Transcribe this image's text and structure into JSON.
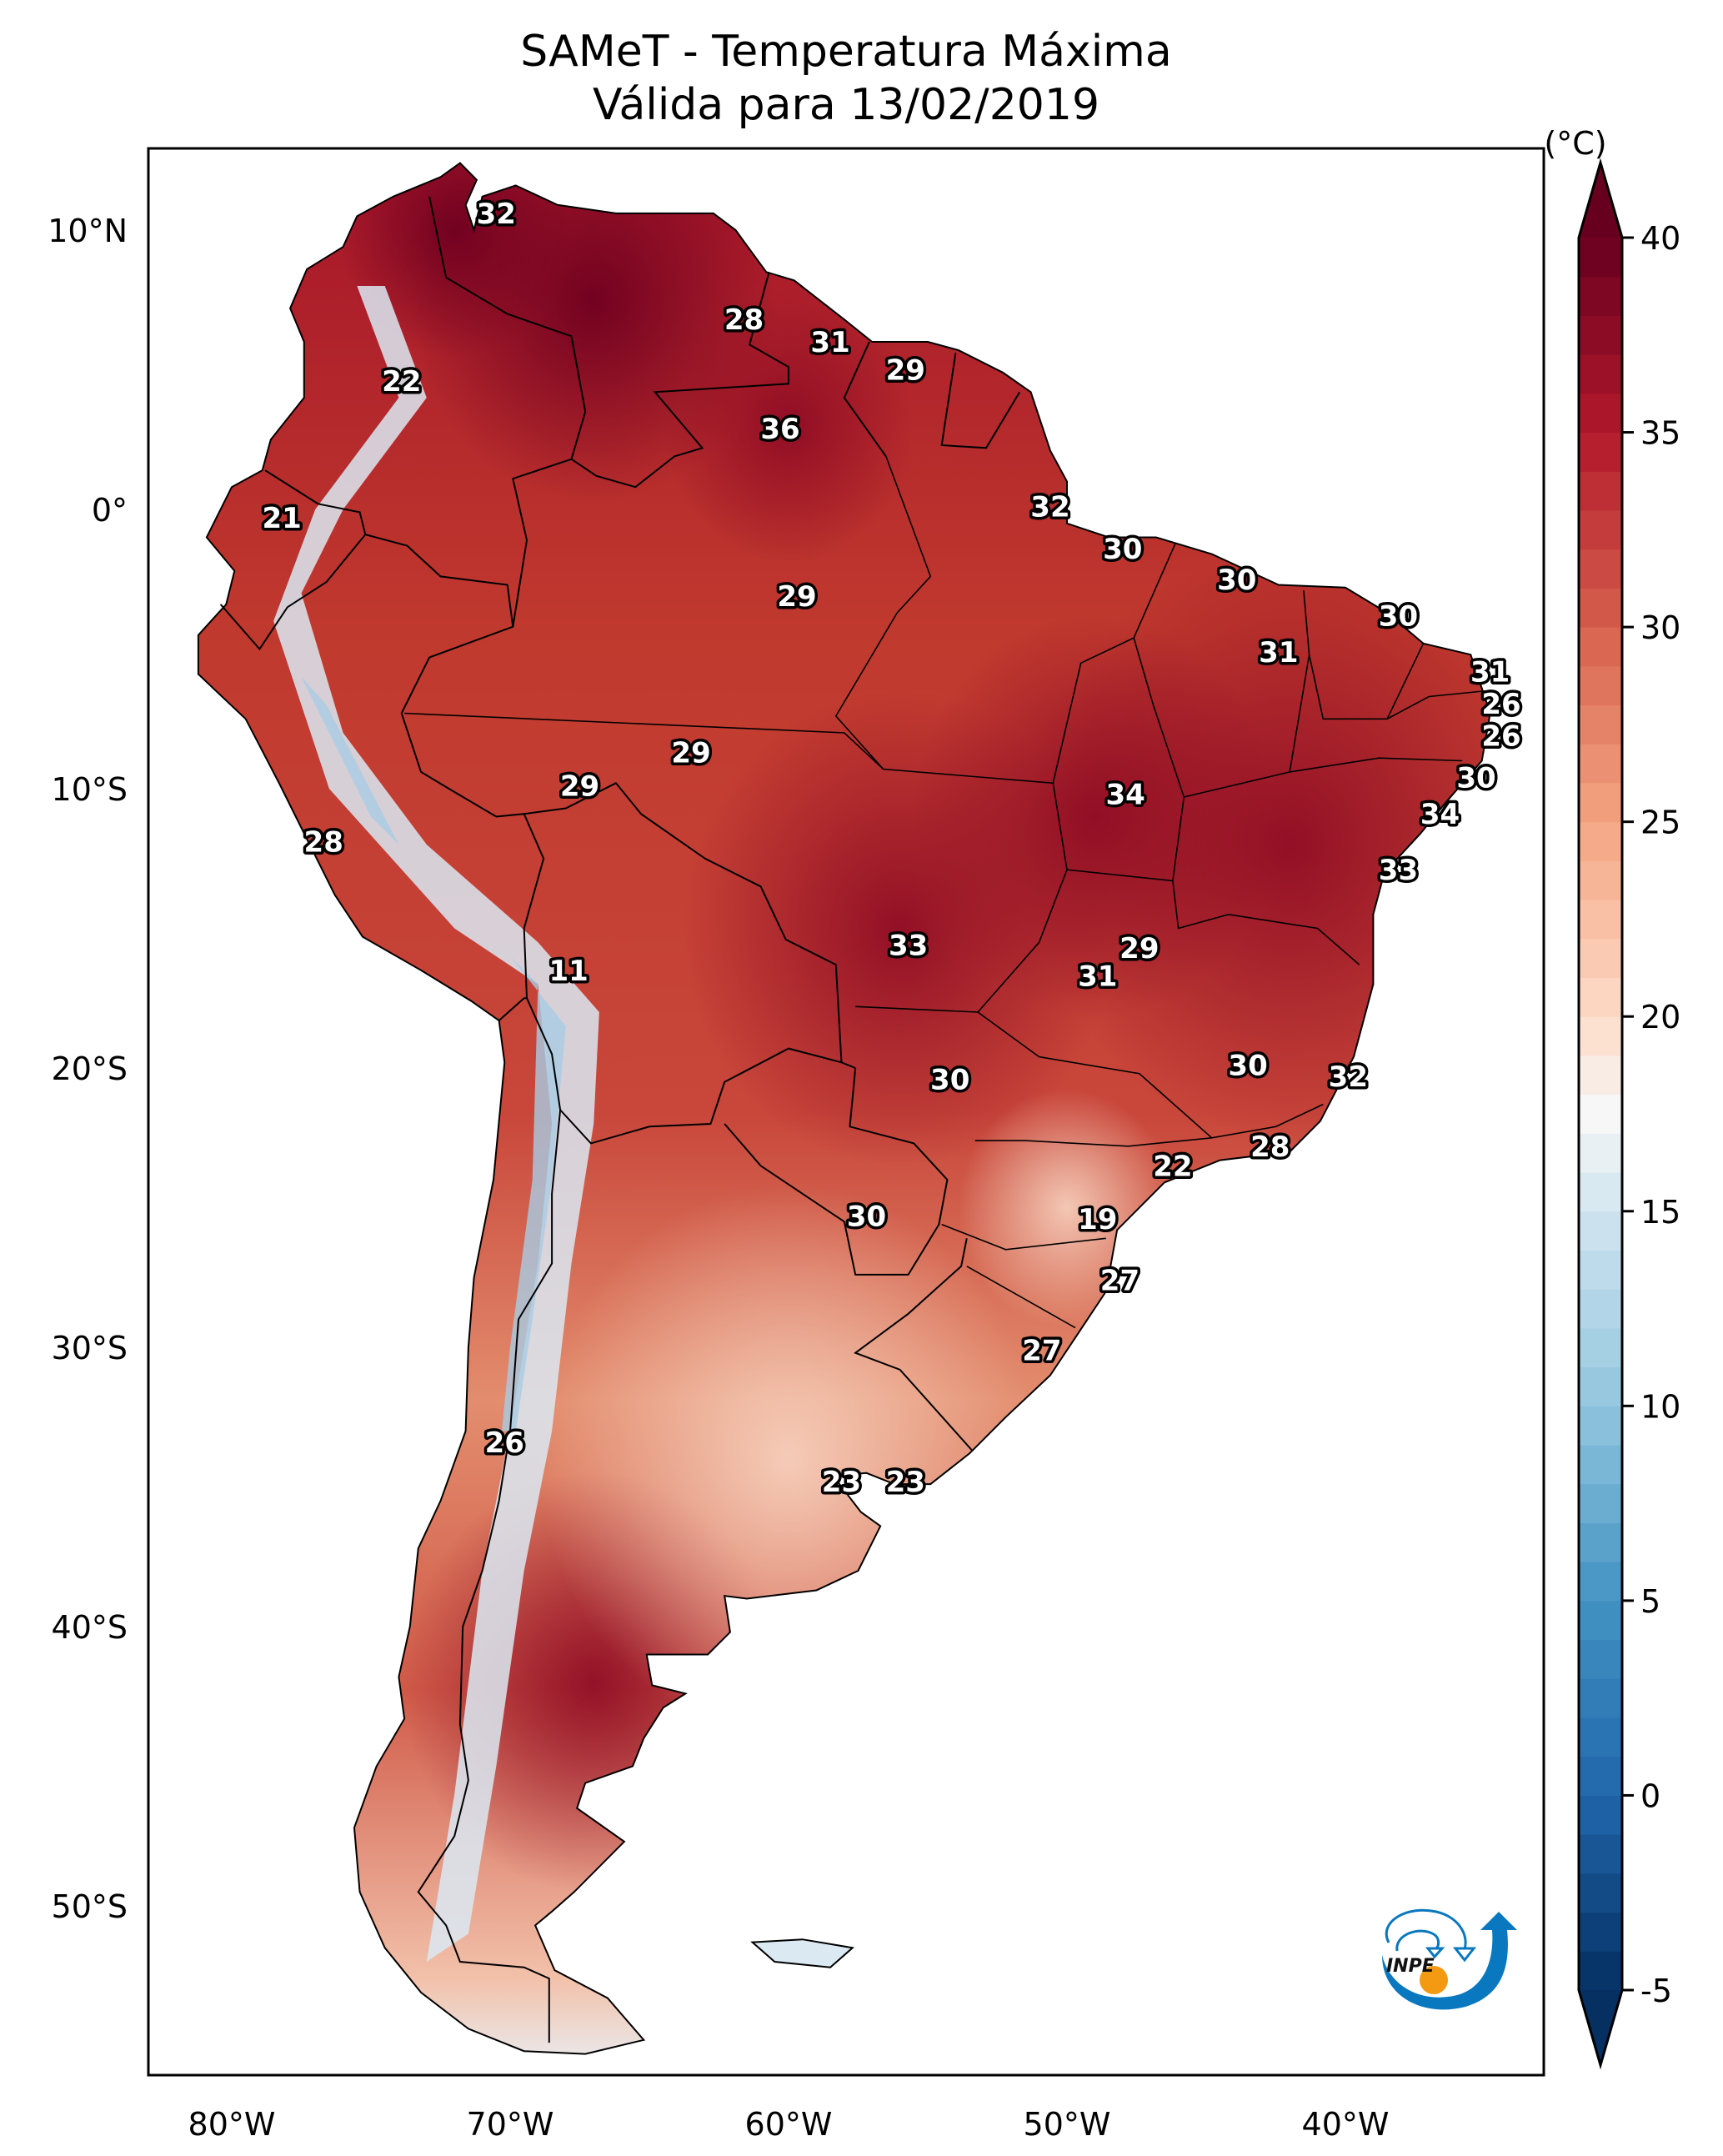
{
  "title": {
    "line1": "SAMeT - Temperatura Máxima",
    "line2": "Válida para 13/02/2019"
  },
  "chart_data": {
    "type": "heatmap",
    "subtype": "geographic-map",
    "title": "SAMeT - Temperatura Máxima",
    "subtitle": "Válida para 13/02/2019",
    "region": "South America",
    "projection": "PlateCarree",
    "lon_range": [
      -83,
      -33
    ],
    "lat_range": [
      -56.5,
      13.5
    ],
    "x_ticks": [
      {
        "value": -80,
        "label": "80°W"
      },
      {
        "value": -70,
        "label": "70°W"
      },
      {
        "value": -60,
        "label": "60°W"
      },
      {
        "value": -50,
        "label": "50°W"
      },
      {
        "value": -40,
        "label": "40°W"
      }
    ],
    "y_ticks": [
      {
        "value": 10,
        "label": "10°N"
      },
      {
        "value": 0,
        "label": "0°"
      },
      {
        "value": -10,
        "label": "10°S"
      },
      {
        "value": -20,
        "label": "20°S"
      },
      {
        "value": -30,
        "label": "30°S"
      },
      {
        "value": -40,
        "label": "40°S"
      },
      {
        "value": -50,
        "label": "50°S"
      }
    ],
    "colorbar": {
      "label": "(°C)",
      "colormap": "RdBu_r",
      "range": [
        -5,
        40
      ],
      "extend": "both",
      "ticks": [
        -5,
        0,
        5,
        10,
        15,
        20,
        25,
        30,
        35,
        40
      ],
      "tick_labels": [
        "-5",
        "0",
        "5",
        "10",
        "15",
        "20",
        "25",
        "30",
        "35",
        "40"
      ],
      "stops": [
        {
          "value": -5,
          "color": "#053061"
        },
        {
          "value": 0,
          "color": "#2166ac"
        },
        {
          "value": 5,
          "color": "#4393c3"
        },
        {
          "value": 10,
          "color": "#92c5de"
        },
        {
          "value": 15,
          "color": "#d1e5f0"
        },
        {
          "value": 17.5,
          "color": "#f7f7f7"
        },
        {
          "value": 20,
          "color": "#fddbc7"
        },
        {
          "value": 25,
          "color": "#f4a582"
        },
        {
          "value": 30,
          "color": "#d6604d"
        },
        {
          "value": 35,
          "color": "#b2182b"
        },
        {
          "value": 40,
          "color": "#67001f"
        }
      ]
    },
    "station_labels": [
      {
        "value": 32,
        "lon": -70.5,
        "lat": 10.6
      },
      {
        "value": 28,
        "lon": -61.6,
        "lat": 6.8
      },
      {
        "value": 31,
        "lon": -58.5,
        "lat": 6.0
      },
      {
        "value": 29,
        "lon": -55.8,
        "lat": 5.0
      },
      {
        "value": 22,
        "lon": -73.9,
        "lat": 4.6
      },
      {
        "value": 36,
        "lon": -60.3,
        "lat": 2.9
      },
      {
        "value": 32,
        "lon": -50.6,
        "lat": 0.1
      },
      {
        "value": 21,
        "lon": -78.2,
        "lat": -0.3
      },
      {
        "value": 30,
        "lon": -48.0,
        "lat": -1.4
      },
      {
        "value": 30,
        "lon": -43.9,
        "lat": -2.5
      },
      {
        "value": 29,
        "lon": -59.7,
        "lat": -3.1
      },
      {
        "value": 30,
        "lon": -38.1,
        "lat": -3.8
      },
      {
        "value": 31,
        "lon": -42.4,
        "lat": -5.1
      },
      {
        "value": 31,
        "lon": -34.8,
        "lat": -5.8
      },
      {
        "value": 26,
        "lon": -34.4,
        "lat": -6.96
      },
      {
        "value": 26,
        "lon": -34.4,
        "lat": -8.1
      },
      {
        "value": 29,
        "lon": -63.5,
        "lat": -8.7
      },
      {
        "value": 30,
        "lon": -35.3,
        "lat": -9.6
      },
      {
        "value": 29,
        "lon": -67.5,
        "lat": -9.9
      },
      {
        "value": 34,
        "lon": -47.9,
        "lat": -10.2
      },
      {
        "value": 34,
        "lon": -36.6,
        "lat": -10.9
      },
      {
        "value": 28,
        "lon": -76.7,
        "lat": -11.9
      },
      {
        "value": 33,
        "lon": -38.1,
        "lat": -12.9
      },
      {
        "value": 33,
        "lon": -55.7,
        "lat": -15.6
      },
      {
        "value": 29,
        "lon": -47.4,
        "lat": -15.7
      },
      {
        "value": 11,
        "lon": -67.9,
        "lat": -16.5
      },
      {
        "value": 31,
        "lon": -48.9,
        "lat": -16.7
      },
      {
        "value": 30,
        "lon": -43.5,
        "lat": -19.9
      },
      {
        "value": 30,
        "lon": -54.2,
        "lat": -20.4
      },
      {
        "value": 32,
        "lon": -39.9,
        "lat": -20.3
      },
      {
        "value": 28,
        "lon": -42.7,
        "lat": -22.8
      },
      {
        "value": 22,
        "lon": -46.2,
        "lat": -23.5
      },
      {
        "value": 30,
        "lon": -57.2,
        "lat": -25.3
      },
      {
        "value": 19,
        "lon": -48.9,
        "lat": -25.4
      },
      {
        "value": 27,
        "lon": -48.1,
        "lat": -27.6
      },
      {
        "value": 27,
        "lon": -50.9,
        "lat": -30.1
      },
      {
        "value": 26,
        "lon": -70.2,
        "lat": -33.4
      },
      {
        "value": 23,
        "lon": -58.1,
        "lat": -34.8
      },
      {
        "value": 23,
        "lon": -55.8,
        "lat": -34.8
      }
    ]
  },
  "logo": {
    "text": "INPE",
    "colors": {
      "arc": "#0a78be",
      "dot": "#f39a12",
      "text": "#111111"
    }
  }
}
